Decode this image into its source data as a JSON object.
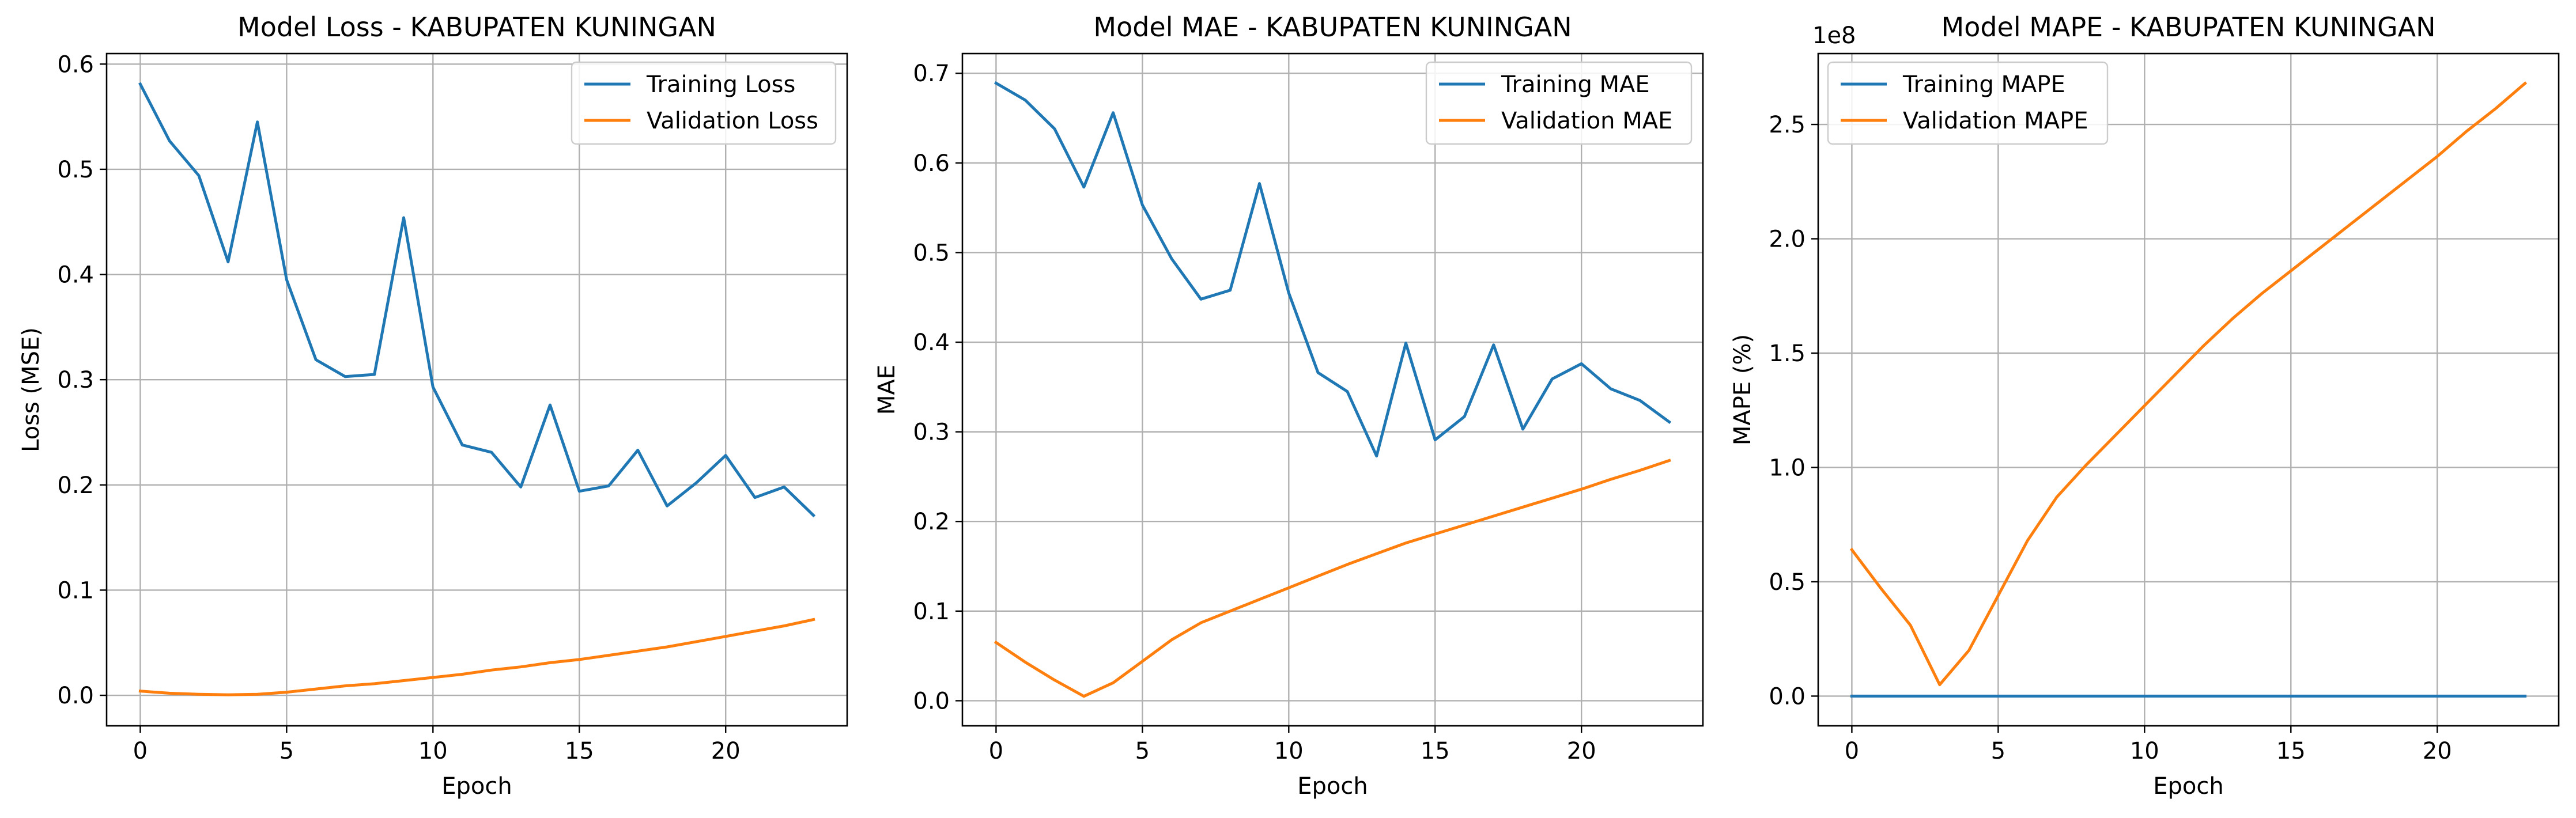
{
  "colors": {
    "blue": "#1f77b4",
    "orange": "#ff7f0e",
    "grid": "#b0b0b0"
  },
  "chart_data": [
    {
      "type": "line",
      "title": "Model Loss - KABUPATEN KUNINGAN",
      "xlabel": "Epoch",
      "ylabel": "Loss (MSE)",
      "xlim": [
        -1.15,
        24.15
      ],
      "ylim": [
        -0.029,
        0.61
      ],
      "xticks": [
        0,
        5,
        10,
        15,
        20
      ],
      "yticks": [
        0.0,
        0.1,
        0.2,
        0.3,
        0.4,
        0.5,
        0.6
      ],
      "ytick_labels": [
        "0.0",
        "0.1",
        "0.2",
        "0.3",
        "0.4",
        "0.5",
        "0.6"
      ],
      "grid": true,
      "legend_position": "top-right",
      "x": [
        0,
        1,
        2,
        3,
        4,
        5,
        6,
        7,
        8,
        9,
        10,
        11,
        12,
        13,
        14,
        15,
        16,
        17,
        18,
        19,
        20,
        21,
        22,
        23
      ],
      "series": [
        {
          "name": "Training Loss",
          "color": "#1f77b4",
          "values": [
            0.581,
            0.527,
            0.494,
            0.412,
            0.545,
            0.395,
            0.319,
            0.303,
            0.305,
            0.454,
            0.293,
            0.238,
            0.231,
            0.198,
            0.276,
            0.194,
            0.199,
            0.233,
            0.18,
            0.202,
            0.228,
            0.188,
            0.198,
            0.171
          ]
        },
        {
          "name": "Validation Loss",
          "color": "#ff7f0e",
          "values": [
            0.004,
            0.002,
            0.001,
            0.0005,
            0.001,
            0.003,
            0.006,
            0.009,
            0.011,
            0.014,
            0.017,
            0.02,
            0.024,
            0.027,
            0.031,
            0.034,
            0.038,
            0.042,
            0.046,
            0.051,
            0.056,
            0.061,
            0.066,
            0.072
          ]
        }
      ]
    },
    {
      "type": "line",
      "title": "Model MAE - KABUPATEN KUNINGAN",
      "xlabel": "Epoch",
      "ylabel": "MAE",
      "xlim": [
        -1.15,
        24.15
      ],
      "ylim": [
        -0.028,
        0.722
      ],
      "xticks": [
        0,
        5,
        10,
        15,
        20
      ],
      "yticks": [
        0.0,
        0.1,
        0.2,
        0.3,
        0.4,
        0.5,
        0.6,
        0.7
      ],
      "ytick_labels": [
        "0.0",
        "0.1",
        "0.2",
        "0.3",
        "0.4",
        "0.5",
        "0.6",
        "0.7"
      ],
      "grid": true,
      "legend_position": "top-right",
      "x": [
        0,
        1,
        2,
        3,
        4,
        5,
        6,
        7,
        8,
        9,
        10,
        11,
        12,
        13,
        14,
        15,
        16,
        17,
        18,
        19,
        20,
        21,
        22,
        23
      ],
      "series": [
        {
          "name": "Training MAE",
          "color": "#1f77b4",
          "values": [
            0.689,
            0.67,
            0.638,
            0.573,
            0.656,
            0.553,
            0.493,
            0.448,
            0.458,
            0.577,
            0.455,
            0.366,
            0.345,
            0.273,
            0.399,
            0.291,
            0.317,
            0.397,
            0.303,
            0.359,
            0.376,
            0.348,
            0.335,
            0.311
          ]
        },
        {
          "name": "Validation MAE",
          "color": "#ff7f0e",
          "values": [
            0.065,
            0.043,
            0.023,
            0.005,
            0.02,
            0.044,
            0.068,
            0.087,
            0.1,
            0.113,
            0.126,
            0.139,
            0.152,
            0.164,
            0.176,
            0.186,
            0.196,
            0.206,
            0.216,
            0.226,
            0.236,
            0.247,
            0.257,
            0.268
          ]
        }
      ]
    },
    {
      "type": "line",
      "title": "Model MAPE - KABUPATEN KUNINGAN",
      "xlabel": "Epoch",
      "ylabel": "MAPE (%)",
      "scale_label": "1e8",
      "xlim": [
        -1.15,
        24.15
      ],
      "ylim": [
        -0.13,
        2.81
      ],
      "xticks": [
        0,
        5,
        10,
        15,
        20
      ],
      "yticks": [
        0.0,
        0.5,
        1.0,
        1.5,
        2.0,
        2.5
      ],
      "ytick_labels": [
        "0.0",
        "0.5",
        "1.0",
        "1.5",
        "2.0",
        "2.5"
      ],
      "grid": true,
      "legend_position": "top-left",
      "x": [
        0,
        1,
        2,
        3,
        4,
        5,
        6,
        7,
        8,
        9,
        10,
        11,
        12,
        13,
        14,
        15,
        16,
        17,
        18,
        19,
        20,
        21,
        22,
        23
      ],
      "series": [
        {
          "name": "Training MAPE",
          "color": "#1f77b4",
          "values": [
            0.0,
            0.0,
            0.0,
            0.0,
            0.0,
            0.0,
            0.0,
            0.0,
            0.0,
            0.0,
            0.0,
            0.0,
            0.0,
            0.0,
            0.0,
            0.0,
            0.0,
            0.0,
            0.0,
            0.0,
            0.0,
            0.0,
            0.0,
            0.0
          ]
        },
        {
          "name": "Validation MAPE",
          "color": "#ff7f0e",
          "values": [
            0.64,
            0.47,
            0.31,
            0.05,
            0.2,
            0.44,
            0.68,
            0.87,
            1.01,
            1.14,
            1.27,
            1.4,
            1.53,
            1.65,
            1.76,
            1.86,
            1.96,
            2.06,
            2.16,
            2.26,
            2.36,
            2.47,
            2.57,
            2.68
          ]
        }
      ]
    }
  ]
}
